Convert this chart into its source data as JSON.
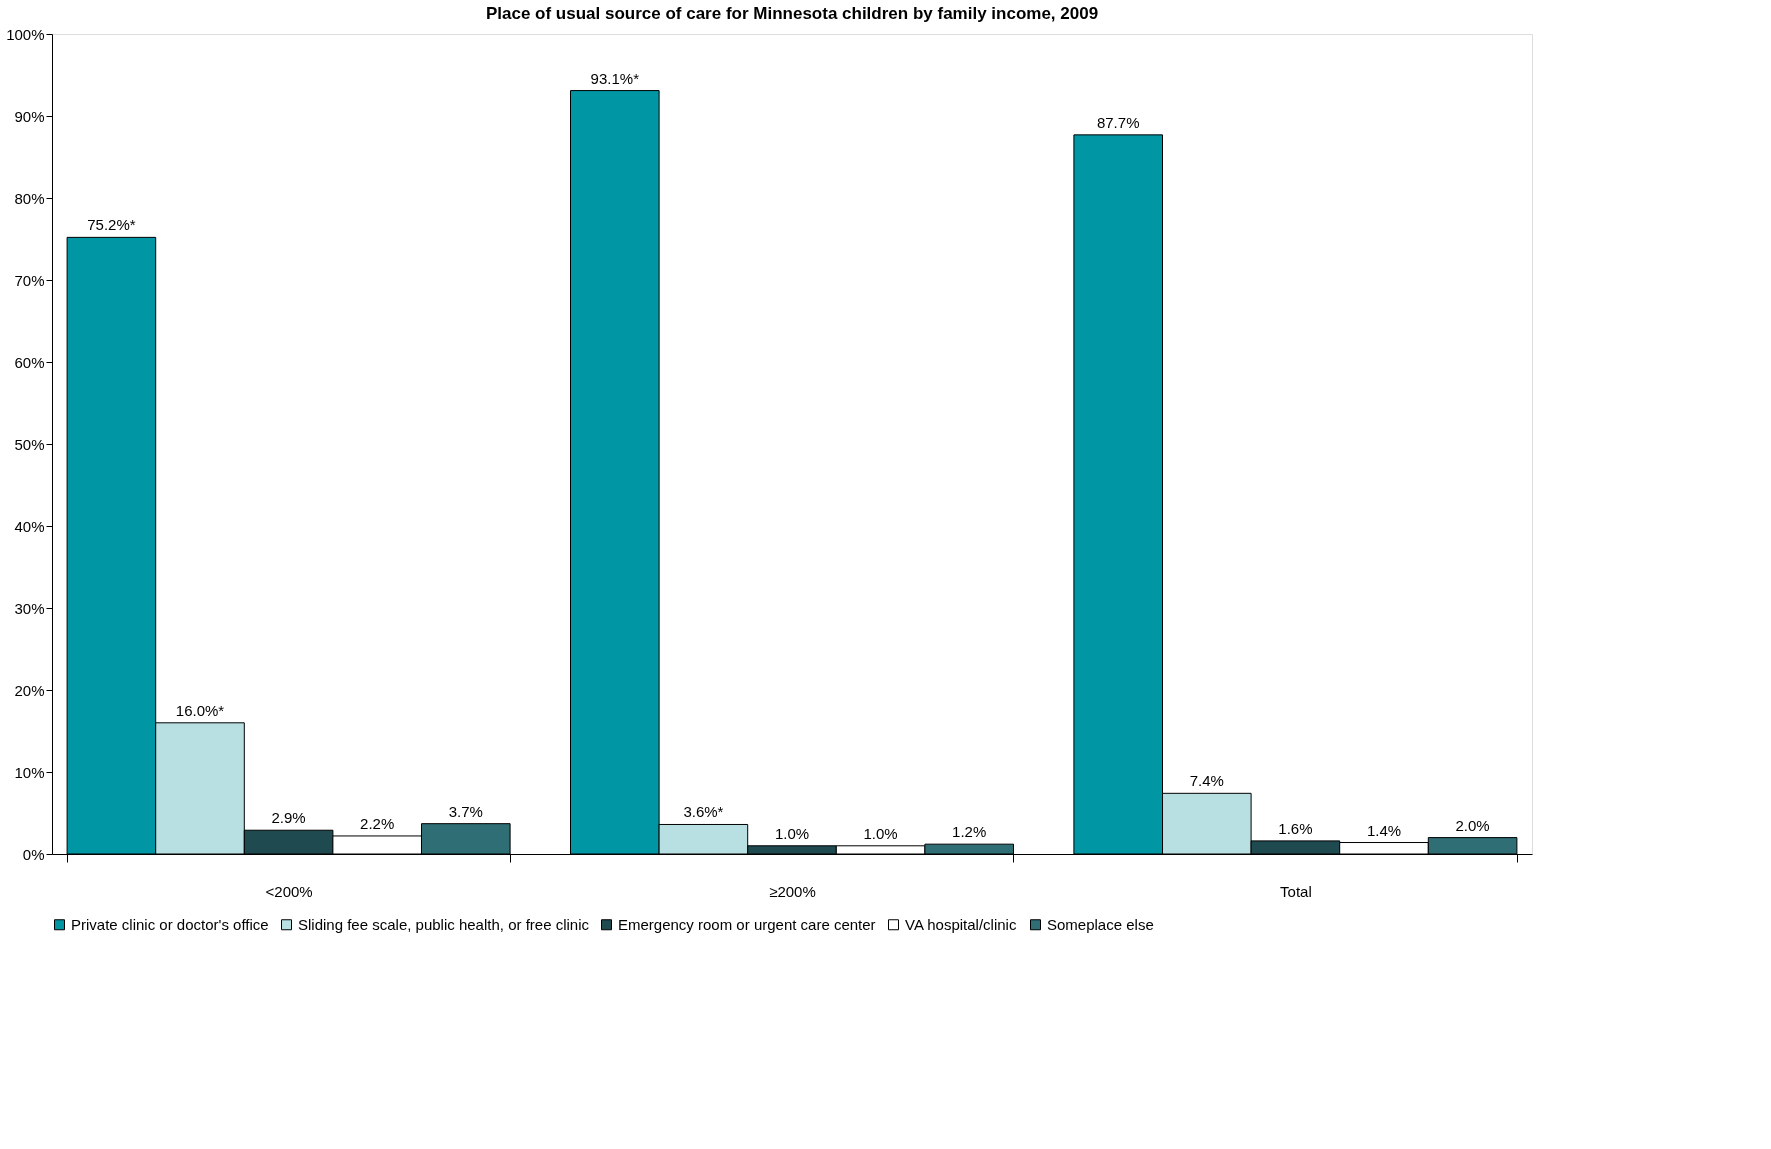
{
  "chart_data": {
    "type": "bar",
    "title": "Place of usual source of care for Minnesota children by family income, 2009",
    "categories": [
      "<200%",
      "≥200%",
      "Total"
    ],
    "series": [
      {
        "name": "Private clinic or doctor's office",
        "color": "#0096a3",
        "values": [
          75.2,
          93.1,
          87.7
        ],
        "value_labels": [
          "75.2%*",
          "93.1%*",
          "87.7%"
        ]
      },
      {
        "name": "Sliding fee scale, public health, or free clinic",
        "color": "#b8e0e3",
        "values": [
          16.0,
          3.6,
          7.4
        ],
        "value_labels": [
          "16.0%*",
          "3.6%*",
          "7.4%"
        ]
      },
      {
        "name": "Emergency room or urgent care center",
        "color": "#1f4a50",
        "values": [
          2.9,
          1.0,
          1.6
        ],
        "value_labels": [
          "2.9%",
          "1.0%",
          "1.6%"
        ]
      },
      {
        "name": "VA hospital/clinic",
        "color": "#ffffff",
        "values": [
          2.2,
          1.0,
          1.4
        ],
        "value_labels": [
          "2.2%",
          "1.0%",
          "1.4%"
        ]
      },
      {
        "name": "Someplace else",
        "color": "#2e6e74",
        "values": [
          3.7,
          1.2,
          2.0
        ],
        "value_labels": [
          "3.7%",
          "1.2%",
          "2.0%"
        ]
      }
    ],
    "ylim": [
      0,
      100
    ],
    "yticks": [
      {
        "value": 0,
        "label": "0%"
      },
      {
        "value": 10,
        "label": "10%"
      },
      {
        "value": 20,
        "label": "20%"
      },
      {
        "value": 30,
        "label": "30%"
      },
      {
        "value": 40,
        "label": "40%"
      },
      {
        "value": 50,
        "label": "50%"
      },
      {
        "value": 60,
        "label": "60%"
      },
      {
        "value": 70,
        "label": "70%"
      },
      {
        "value": 80,
        "label": "80%"
      },
      {
        "value": 90,
        "label": "90%"
      },
      {
        "value": 100,
        "label": "100%"
      }
    ],
    "grid": false,
    "legend": "bottom"
  }
}
